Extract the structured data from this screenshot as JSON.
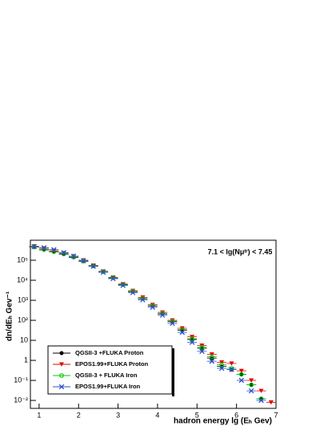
{
  "chart_data": {
    "type": "scatter",
    "annotation": "7.1 < lg(Nμᵗʳ) < 7.45",
    "x_label": "hadron energy lg (Eₕ Gev)",
    "y_label": "dn/dEₕ Gev⁻¹",
    "x": [
      0.875,
      1.125,
      1.375,
      1.625,
      1.875,
      2.125,
      2.375,
      2.625,
      2.875,
      3.125,
      3.375,
      3.625,
      3.875,
      4.125,
      4.375,
      4.625,
      4.875,
      5.125,
      5.375,
      5.625,
      5.875,
      6.125,
      6.375,
      6.625,
      6.875
    ],
    "series": [
      {
        "name": "QGSII-3 +FLUKA Proton",
        "color": "#000000",
        "marker": "circle",
        "values": [
          450000,
          330000,
          260000,
          200000,
          140000,
          88000,
          50000,
          26000,
          13000,
          6000,
          2700,
          1200,
          520,
          210,
          85,
          32,
          11,
          4,
          1.3,
          0.5,
          0.35,
          0.2,
          0.06,
          0.012,
          null
        ]
      },
      {
        "name": "EPOS1.99+FLUKA Proton",
        "color": "#e00000",
        "marker": "triangle",
        "values": [
          500000,
          400000,
          300000,
          230000,
          160000,
          100000,
          55000,
          28000,
          14000,
          6500,
          3000,
          1400,
          600,
          250,
          100,
          40,
          15,
          5.5,
          2,
          0.8,
          0.7,
          0.3,
          0.1,
          0.03,
          0.008
        ]
      },
      {
        "name": "QGSII-3 + FLUKA Iron",
        "color": "#00cc00",
        "marker": "open-circle",
        "values": [
          460000,
          350000,
          270000,
          210000,
          150000,
          92000,
          52000,
          27000,
          13500,
          6200,
          2800,
          1250,
          540,
          220,
          90,
          34,
          12,
          4.5,
          1.5,
          0.6,
          0.4,
          0.2,
          0.06,
          0.012,
          null
        ]
      },
      {
        "name": "EPOS1.99+FLUKA Iron",
        "color": "#3050d0",
        "marker": "cross",
        "values": [
          480000,
          420000,
          340000,
          240000,
          160000,
          95000,
          50000,
          25000,
          12000,
          5500,
          2400,
          1050,
          450,
          180,
          70,
          25,
          8,
          2.8,
          0.9,
          0.4,
          0.35,
          0.1,
          0.03,
          0.01,
          null
        ]
      }
    ],
    "xlim": [
      0.78,
      7
    ],
    "xticks": [
      1,
      2,
      3,
      4,
      5,
      6,
      7
    ],
    "ylim": [
      0.004,
      1000000
    ],
    "log_y": true,
    "yticks": [
      {
        "value": 0.01,
        "label": "10⁻²"
      },
      {
        "value": 0.1,
        "label": "10⁻¹"
      },
      1,
      10,
      {
        "value": 100,
        "label": "10²"
      },
      {
        "value": 1000,
        "label": "10³"
      },
      {
        "value": 10000,
        "label": "10⁴"
      },
      {
        "value": 100000,
        "label": "10⁵"
      }
    ],
    "legend": "lower left"
  }
}
